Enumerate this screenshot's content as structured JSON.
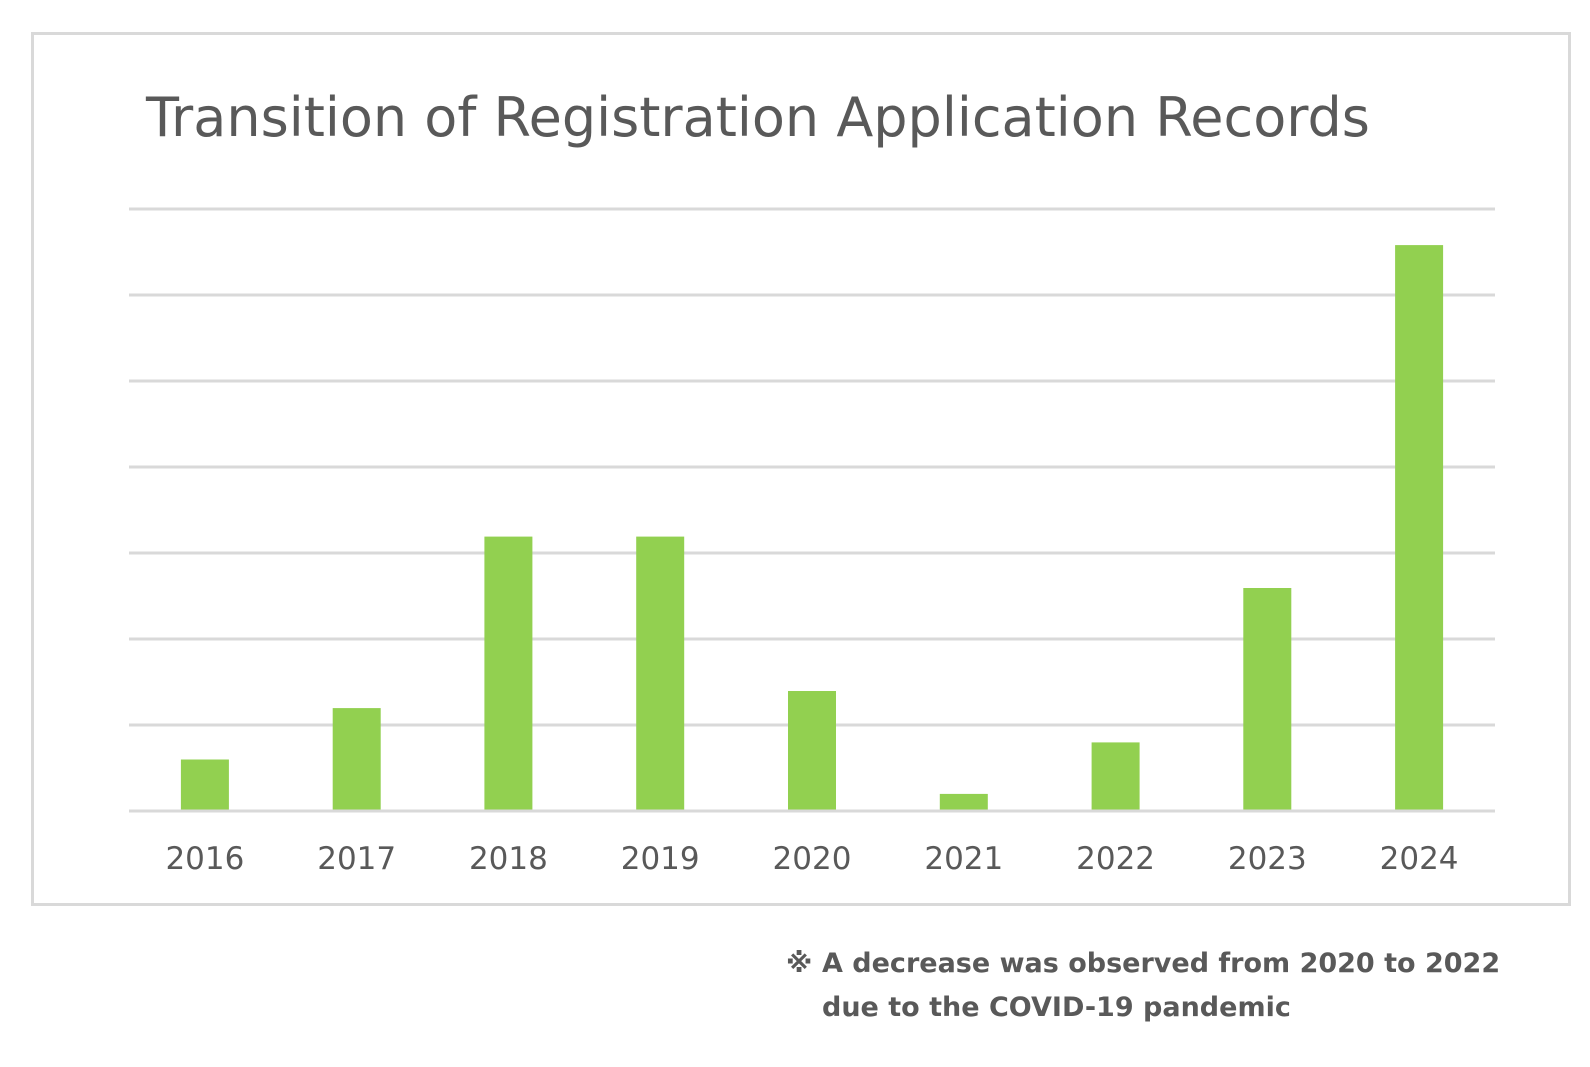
{
  "chart_data": {
    "type": "bar",
    "title": "Transition of Registration Application Records",
    "categories": [
      "2016",
      "2017",
      "2018",
      "2019",
      "2020",
      "2021",
      "2022",
      "2023",
      "2024"
    ],
    "values": [
      3,
      6,
      16,
      16,
      7,
      1,
      4,
      13,
      33
    ],
    "ylim": [
      0,
      35
    ],
    "grid": true,
    "bar_color": "#92d050",
    "grid_color": "#d9d9d9",
    "text_color": "#595959"
  },
  "footnote": {
    "mark": "※",
    "line1": "A decrease was observed from 2020 to 2022",
    "line2": "due to the COVID-19 pandemic"
  }
}
